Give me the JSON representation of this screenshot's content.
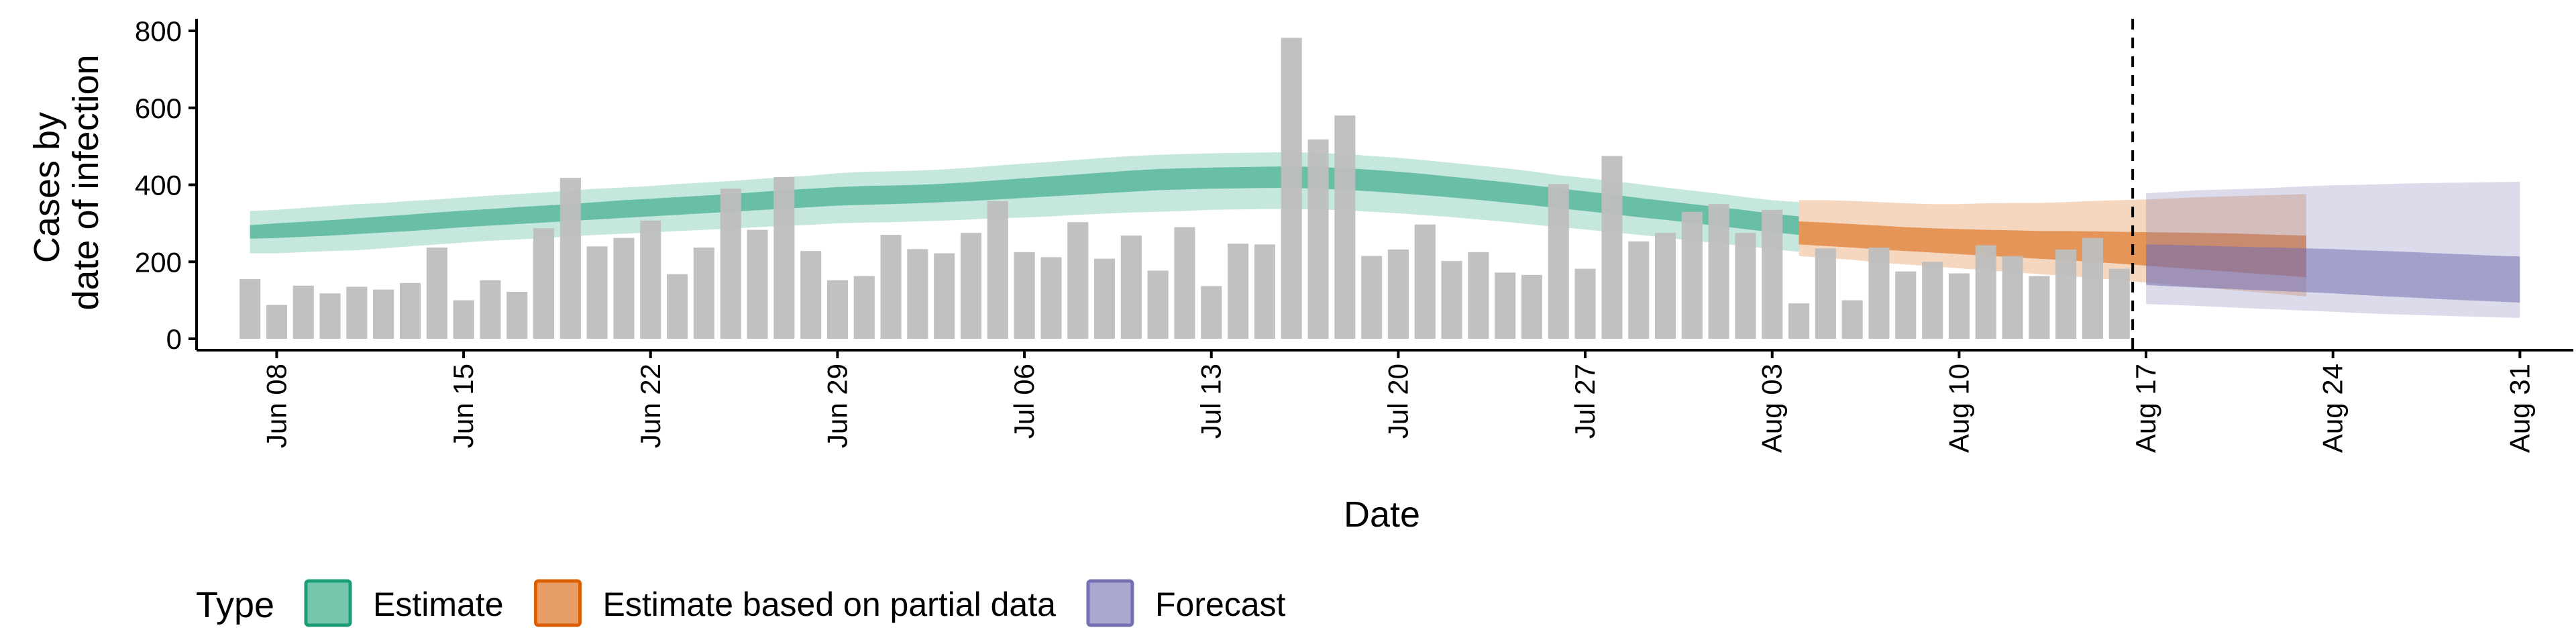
{
  "chart_data": {
    "type": "bar",
    "xlabel": "Date",
    "ylabel_lines": [
      "Cases by",
      "date of infection"
    ],
    "ylim": [
      0,
      800
    ],
    "y_ticks": [
      0,
      200,
      400,
      600,
      800
    ],
    "x_start": "2021-06-05",
    "x_end": "2021-09-02",
    "x_ticks": [
      {
        "date": "2021-06-08",
        "label": "Jun 08"
      },
      {
        "date": "2021-06-15",
        "label": "Jun 15"
      },
      {
        "date": "2021-06-22",
        "label": "Jun 22"
      },
      {
        "date": "2021-06-29",
        "label": "Jun 29"
      },
      {
        "date": "2021-07-06",
        "label": "Jul 06"
      },
      {
        "date": "2021-07-13",
        "label": "Jul 13"
      },
      {
        "date": "2021-07-20",
        "label": "Jul 20"
      },
      {
        "date": "2021-07-27",
        "label": "Jul 27"
      },
      {
        "date": "2021-08-03",
        "label": "Aug 03"
      },
      {
        "date": "2021-08-10",
        "label": "Aug 10"
      },
      {
        "date": "2021-08-17",
        "label": "Aug 17"
      },
      {
        "date": "2021-08-24",
        "label": "Aug 24"
      },
      {
        "date": "2021-08-31",
        "label": "Aug 31"
      }
    ],
    "bar_color": "#bebebe",
    "bars": {
      "start_date": "2021-06-07",
      "values": [
        155,
        88,
        138,
        118,
        135,
        128,
        145,
        237,
        100,
        152,
        122,
        287,
        418,
        240,
        262,
        307,
        168,
        237,
        390,
        283,
        420,
        228,
        152,
        163,
        270,
        233,
        222,
        275,
        358,
        225,
        212,
        303,
        208,
        268,
        177,
        290,
        137,
        247,
        245,
        782,
        518,
        580,
        215,
        232,
        297,
        202,
        225,
        172,
        166,
        402,
        182,
        475,
        253,
        275,
        330,
        350,
        275,
        335,
        92,
        235,
        100,
        237,
        175,
        200,
        170,
        243,
        215,
        163,
        232,
        262,
        182
      ]
    },
    "nowcast_date": "2021-08-16",
    "series": [
      {
        "name": "Estimate",
        "fill": "#1b9e77",
        "border": "#1b9e77",
        "start_date": "2021-06-07",
        "ribbon_90": [
          [
            222,
            332
          ],
          [
            222,
            335
          ],
          [
            225,
            340
          ],
          [
            228,
            345
          ],
          [
            230,
            350
          ],
          [
            235,
            353
          ],
          [
            240,
            358
          ],
          [
            245,
            362
          ],
          [
            250,
            367
          ],
          [
            255,
            372
          ],
          [
            258,
            376
          ],
          [
            262,
            380
          ],
          [
            266,
            385
          ],
          [
            270,
            390
          ],
          [
            273,
            393
          ],
          [
            276,
            397
          ],
          [
            280,
            402
          ],
          [
            283,
            406
          ],
          [
            286,
            410
          ],
          [
            290,
            415
          ],
          [
            293,
            420
          ],
          [
            296,
            424
          ],
          [
            300,
            430
          ],
          [
            302,
            434
          ],
          [
            303,
            435
          ],
          [
            305,
            437
          ],
          [
            307,
            440
          ],
          [
            310,
            445
          ],
          [
            313,
            450
          ],
          [
            315,
            455
          ],
          [
            318,
            460
          ],
          [
            322,
            465
          ],
          [
            325,
            470
          ],
          [
            328,
            475
          ],
          [
            330,
            478
          ],
          [
            332,
            480
          ],
          [
            335,
            482
          ],
          [
            336,
            483
          ],
          [
            337,
            484
          ],
          [
            337,
            485
          ],
          [
            336,
            483
          ],
          [
            334,
            480
          ],
          [
            330,
            475
          ],
          [
            326,
            470
          ],
          [
            321,
            464
          ],
          [
            316,
            457
          ],
          [
            310,
            450
          ],
          [
            304,
            443
          ],
          [
            297,
            435
          ],
          [
            290,
            425
          ],
          [
            284,
            418
          ],
          [
            277,
            410
          ],
          [
            270,
            402
          ],
          [
            263,
            393
          ],
          [
            255,
            385
          ],
          [
            248,
            377
          ],
          [
            240,
            368
          ],
          [
            233,
            360
          ],
          [
            226,
            355
          ]
        ],
        "ribbon_50": [
          [
            260,
            295
          ],
          [
            262,
            300
          ],
          [
            265,
            304
          ],
          [
            268,
            308
          ],
          [
            272,
            313
          ],
          [
            276,
            318
          ],
          [
            280,
            323
          ],
          [
            285,
            328
          ],
          [
            290,
            333
          ],
          [
            294,
            337
          ],
          [
            298,
            342
          ],
          [
            302,
            346
          ],
          [
            306,
            350
          ],
          [
            310,
            355
          ],
          [
            314,
            360
          ],
          [
            318,
            364
          ],
          [
            322,
            368
          ],
          [
            326,
            372
          ],
          [
            330,
            376
          ],
          [
            334,
            381
          ],
          [
            338,
            386
          ],
          [
            342,
            390
          ],
          [
            346,
            394
          ],
          [
            348,
            397
          ],
          [
            350,
            398
          ],
          [
            352,
            400
          ],
          [
            355,
            403
          ],
          [
            358,
            407
          ],
          [
            362,
            412
          ],
          [
            366,
            417
          ],
          [
            370,
            422
          ],
          [
            374,
            427
          ],
          [
            378,
            432
          ],
          [
            382,
            437
          ],
          [
            386,
            441
          ],
          [
            388,
            443
          ],
          [
            390,
            445
          ],
          [
            391,
            446
          ],
          [
            392,
            447
          ],
          [
            392,
            448
          ],
          [
            390,
            446
          ],
          [
            387,
            443
          ],
          [
            383,
            439
          ],
          [
            378,
            434
          ],
          [
            373,
            428
          ],
          [
            367,
            421
          ],
          [
            361,
            414
          ],
          [
            354,
            407
          ],
          [
            347,
            399
          ],
          [
            339,
            391
          ],
          [
            332,
            383
          ],
          [
            324,
            375
          ],
          [
            316,
            366
          ],
          [
            309,
            358
          ],
          [
            301,
            350
          ],
          [
            293,
            342
          ],
          [
            285,
            334
          ],
          [
            277,
            325
          ],
          [
            270,
            318
          ]
        ]
      },
      {
        "name": "Estimate based on partial data",
        "fill": "#d95f02",
        "border": "#d95f02",
        "start_date": "2021-08-04",
        "ribbon_90": [
          [
            215,
            360
          ],
          [
            210,
            360
          ],
          [
            205,
            358
          ],
          [
            198,
            355
          ],
          [
            193,
            352
          ],
          [
            188,
            350
          ],
          [
            183,
            350
          ],
          [
            178,
            352
          ],
          [
            173,
            353
          ],
          [
            168,
            353
          ],
          [
            163,
            355
          ],
          [
            158,
            358
          ],
          [
            152,
            360
          ],
          [
            146,
            362
          ],
          [
            140,
            365
          ],
          [
            134,
            368
          ],
          [
            128,
            370
          ],
          [
            122,
            372
          ],
          [
            116,
            374
          ],
          [
            110,
            376
          ]
        ],
        "ribbon_50": [
          [
            245,
            305
          ],
          [
            241,
            302
          ],
          [
            237,
            298
          ],
          [
            232,
            294
          ],
          [
            228,
            290
          ],
          [
            224,
            287
          ],
          [
            220,
            285
          ],
          [
            216,
            283
          ],
          [
            212,
            282
          ],
          [
            208,
            280
          ],
          [
            204,
            280
          ],
          [
            200,
            279
          ],
          [
            195,
            278
          ],
          [
            190,
            277
          ],
          [
            185,
            276
          ],
          [
            180,
            275
          ],
          [
            175,
            274
          ],
          [
            170,
            272
          ],
          [
            165,
            270
          ],
          [
            160,
            268
          ]
        ]
      },
      {
        "name": "Forecast",
        "fill": "#7570b3",
        "border": "#7570b3",
        "start_date": "2021-08-17",
        "ribbon_90": [
          [
            90,
            378
          ],
          [
            88,
            382
          ],
          [
            85,
            386
          ],
          [
            82,
            388
          ],
          [
            79,
            390
          ],
          [
            76,
            393
          ],
          [
            73,
            396
          ],
          [
            70,
            399
          ],
          [
            67,
            400
          ],
          [
            64,
            402
          ],
          [
            62,
            404
          ],
          [
            60,
            405
          ],
          [
            58,
            406
          ],
          [
            56,
            407
          ],
          [
            54,
            408
          ]
        ],
        "ribbon_50": [
          [
            140,
            245
          ],
          [
            136,
            244
          ],
          [
            133,
            242
          ],
          [
            130,
            240
          ],
          [
            127,
            238
          ],
          [
            124,
            237
          ],
          [
            121,
            235
          ],
          [
            118,
            233
          ],
          [
            114,
            230
          ],
          [
            110,
            228
          ],
          [
            107,
            225
          ],
          [
            103,
            222
          ],
          [
            100,
            219
          ],
          [
            97,
            216
          ],
          [
            94,
            214
          ]
        ]
      }
    ],
    "legend": {
      "title": "Type",
      "position": "bottom"
    }
  }
}
